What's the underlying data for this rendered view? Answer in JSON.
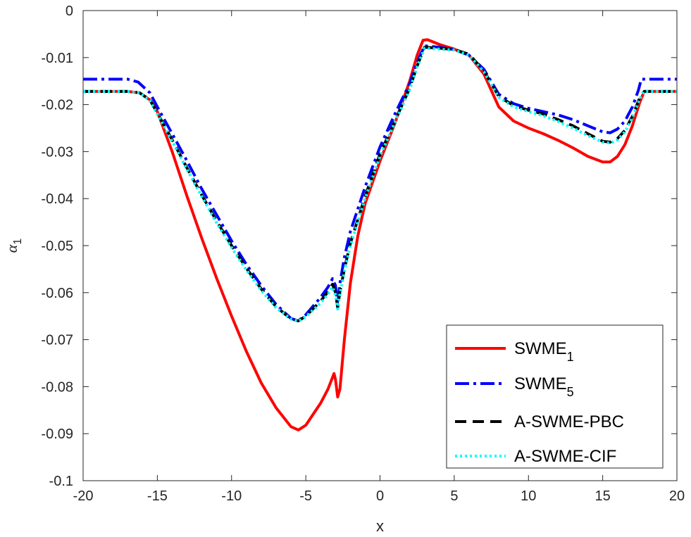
{
  "chart_data": {
    "type": "line",
    "title": "",
    "xlabel": "x",
    "ylabel_main": "α",
    "ylabel_sub": "1",
    "xlim": [
      -20,
      20
    ],
    "ylim": [
      -0.1,
      0
    ],
    "xticks": [
      -20,
      -15,
      -10,
      -5,
      0,
      5,
      10,
      15,
      20
    ],
    "xtick_labels": [
      "-20",
      "-15",
      "-10",
      "-5",
      "0",
      "5",
      "10",
      "15",
      "20"
    ],
    "yticks": [
      0,
      -0.01,
      -0.02,
      -0.03,
      -0.04,
      -0.05,
      -0.06,
      -0.07,
      -0.08,
      -0.09,
      -0.1
    ],
    "ytick_labels": [
      "0",
      "-0.01",
      "-0.02",
      "-0.03",
      "-0.04",
      "-0.05",
      "-0.06",
      "-0.07",
      "-0.08",
      "-0.09",
      "-0.1"
    ],
    "grid": false,
    "legend_position": "bottom-right",
    "series": [
      {
        "name": "SWME",
        "name_sub": "1",
        "color": "#ff0000",
        "style": "solid",
        "points": [
          [
            -20,
            -0.0172
          ],
          [
            -17,
            -0.0172
          ],
          [
            -16.2,
            -0.0175
          ],
          [
            -15.5,
            -0.019
          ],
          [
            -15,
            -0.0215
          ],
          [
            -14,
            -0.03
          ],
          [
            -13,
            -0.0395
          ],
          [
            -12,
            -0.0485
          ],
          [
            -11,
            -0.057
          ],
          [
            -10,
            -0.065
          ],
          [
            -9,
            -0.0725
          ],
          [
            -8,
            -0.0792
          ],
          [
            -7,
            -0.0845
          ],
          [
            -6,
            -0.0885
          ],
          [
            -5.5,
            -0.0892
          ],
          [
            -5,
            -0.0882
          ],
          [
            -4,
            -0.0835
          ],
          [
            -3.5,
            -0.0805
          ],
          [
            -3.1,
            -0.0772
          ],
          [
            -3.0,
            -0.0785
          ],
          [
            -2.85,
            -0.0822
          ],
          [
            -2.7,
            -0.0805
          ],
          [
            -2.4,
            -0.07
          ],
          [
            -2,
            -0.058
          ],
          [
            -1.5,
            -0.048
          ],
          [
            -1,
            -0.041
          ],
          [
            0,
            -0.032
          ],
          [
            1,
            -0.024
          ],
          [
            2,
            -0.015
          ],
          [
            2.5,
            -0.0095
          ],
          [
            2.9,
            -0.0063
          ],
          [
            3.2,
            -0.0062
          ],
          [
            4,
            -0.0072
          ],
          [
            5,
            -0.0082
          ],
          [
            6,
            -0.0095
          ],
          [
            7,
            -0.0135
          ],
          [
            8,
            -0.0205
          ],
          [
            9,
            -0.0235
          ],
          [
            10,
            -0.025
          ],
          [
            11,
            -0.0262
          ],
          [
            12,
            -0.0276
          ],
          [
            13,
            -0.0292
          ],
          [
            14,
            -0.031
          ],
          [
            15,
            -0.0322
          ],
          [
            15.5,
            -0.0322
          ],
          [
            16,
            -0.031
          ],
          [
            16.5,
            -0.0285
          ],
          [
            17,
            -0.0245
          ],
          [
            17.5,
            -0.0195
          ],
          [
            17.8,
            -0.0172
          ],
          [
            20,
            -0.0172
          ]
        ]
      },
      {
        "name": "SWME",
        "name_sub": "5",
        "color": "#0000ff",
        "style": "dashdot",
        "points": [
          [
            -20,
            -0.0146
          ],
          [
            -17,
            -0.0146
          ],
          [
            -16.3,
            -0.0152
          ],
          [
            -15.5,
            -0.0175
          ],
          [
            -15,
            -0.0205
          ],
          [
            -14,
            -0.0262
          ],
          [
            -13,
            -0.032
          ],
          [
            -12,
            -0.038
          ],
          [
            -11,
            -0.0435
          ],
          [
            -10,
            -0.049
          ],
          [
            -9,
            -0.054
          ],
          [
            -8,
            -0.0585
          ],
          [
            -7,
            -0.0625
          ],
          [
            -6,
            -0.0655
          ],
          [
            -5.5,
            -0.066
          ],
          [
            -5,
            -0.0647
          ],
          [
            -4,
            -0.061
          ],
          [
            -3.5,
            -0.0588
          ],
          [
            -3.2,
            -0.057
          ],
          [
            -3.0,
            -0.0585
          ],
          [
            -2.85,
            -0.0625
          ],
          [
            -2.7,
            -0.058
          ],
          [
            -2.4,
            -0.0525
          ],
          [
            -2,
            -0.047
          ],
          [
            -1,
            -0.0375
          ],
          [
            0,
            -0.029
          ],
          [
            1,
            -0.022
          ],
          [
            2,
            -0.0155
          ],
          [
            2.5,
            -0.011
          ],
          [
            3,
            -0.0075
          ],
          [
            4,
            -0.0078
          ],
          [
            5,
            -0.0083
          ],
          [
            6,
            -0.0095
          ],
          [
            7,
            -0.0125
          ],
          [
            8,
            -0.0178
          ],
          [
            9,
            -0.0198
          ],
          [
            10,
            -0.0208
          ],
          [
            11,
            -0.0215
          ],
          [
            12,
            -0.0222
          ],
          [
            13,
            -0.0232
          ],
          [
            14,
            -0.0245
          ],
          [
            15,
            -0.0258
          ],
          [
            15.5,
            -0.026
          ],
          [
            16,
            -0.0252
          ],
          [
            16.5,
            -0.0235
          ],
          [
            17,
            -0.0205
          ],
          [
            17.4,
            -0.017
          ],
          [
            17.6,
            -0.0146
          ],
          [
            20,
            -0.0146
          ]
        ]
      },
      {
        "name": "A-SWME-PBC",
        "name_sub": "",
        "color": "#000000",
        "style": "dashed",
        "points": [
          [
            -20,
            -0.0172
          ],
          [
            -17,
            -0.0172
          ],
          [
            -16.2,
            -0.0175
          ],
          [
            -15.5,
            -0.019
          ],
          [
            -15,
            -0.0218
          ],
          [
            -14,
            -0.0275
          ],
          [
            -13,
            -0.0335
          ],
          [
            -12,
            -0.0393
          ],
          [
            -11,
            -0.0448
          ],
          [
            -10,
            -0.05
          ],
          [
            -9,
            -0.0548
          ],
          [
            -8,
            -0.0592
          ],
          [
            -7,
            -0.063
          ],
          [
            -6,
            -0.0656
          ],
          [
            -5.5,
            -0.066
          ],
          [
            -5,
            -0.065
          ],
          [
            -4,
            -0.0618
          ],
          [
            -3.5,
            -0.0598
          ],
          [
            -3.2,
            -0.0582
          ],
          [
            -3.0,
            -0.06
          ],
          [
            -2.85,
            -0.0632
          ],
          [
            -2.7,
            -0.0598
          ],
          [
            -2.4,
            -0.055
          ],
          [
            -2,
            -0.0495
          ],
          [
            -1,
            -0.0395
          ],
          [
            0,
            -0.0305
          ],
          [
            1,
            -0.0235
          ],
          [
            2,
            -0.0165
          ],
          [
            2.5,
            -0.0118
          ],
          [
            3,
            -0.0078
          ],
          [
            4,
            -0.008
          ],
          [
            5,
            -0.0083
          ],
          [
            6,
            -0.0093
          ],
          [
            7,
            -0.0128
          ],
          [
            8,
            -0.0183
          ],
          [
            9,
            -0.0202
          ],
          [
            10,
            -0.0212
          ],
          [
            11,
            -0.022
          ],
          [
            12,
            -0.0232
          ],
          [
            13,
            -0.0245
          ],
          [
            14,
            -0.0262
          ],
          [
            15,
            -0.0278
          ],
          [
            15.5,
            -0.028
          ],
          [
            16,
            -0.0272
          ],
          [
            16.5,
            -0.0255
          ],
          [
            17,
            -0.0225
          ],
          [
            17.5,
            -0.0185
          ],
          [
            17.8,
            -0.0172
          ],
          [
            20,
            -0.0172
          ]
        ]
      },
      {
        "name": "A-SWME-CIF",
        "name_sub": "",
        "color": "#00ffff",
        "style": "dotted",
        "points": [
          [
            -20,
            -0.0172
          ],
          [
            -17,
            -0.0172
          ],
          [
            -16.2,
            -0.0175
          ],
          [
            -15.5,
            -0.0192
          ],
          [
            -15,
            -0.022
          ],
          [
            -14,
            -0.0278
          ],
          [
            -13,
            -0.0338
          ],
          [
            -12,
            -0.0396
          ],
          [
            -11,
            -0.0452
          ],
          [
            -10,
            -0.0504
          ],
          [
            -9,
            -0.0552
          ],
          [
            -8,
            -0.0595
          ],
          [
            -7,
            -0.0632
          ],
          [
            -6,
            -0.0656
          ],
          [
            -5.5,
            -0.0661
          ],
          [
            -5,
            -0.0651
          ],
          [
            -4,
            -0.0622
          ],
          [
            -3.5,
            -0.0603
          ],
          [
            -3.2,
            -0.0588
          ],
          [
            -3.0,
            -0.0605
          ],
          [
            -2.85,
            -0.0635
          ],
          [
            -2.7,
            -0.0602
          ],
          [
            -2.4,
            -0.0555
          ],
          [
            -2,
            -0.05
          ],
          [
            -1,
            -0.04
          ],
          [
            0,
            -0.031
          ],
          [
            1,
            -0.0238
          ],
          [
            2,
            -0.0168
          ],
          [
            2.5,
            -0.012
          ],
          [
            3,
            -0.008
          ],
          [
            4,
            -0.0082
          ],
          [
            5,
            -0.0084
          ],
          [
            6,
            -0.0095
          ],
          [
            7,
            -0.013
          ],
          [
            8,
            -0.0185
          ],
          [
            9,
            -0.0205
          ],
          [
            10,
            -0.0215
          ],
          [
            11,
            -0.0224
          ],
          [
            12,
            -0.0236
          ],
          [
            13,
            -0.025
          ],
          [
            14,
            -0.0266
          ],
          [
            15,
            -0.028
          ],
          [
            15.5,
            -0.0282
          ],
          [
            16,
            -0.0275
          ],
          [
            16.5,
            -0.0258
          ],
          [
            17,
            -0.0228
          ],
          [
            17.5,
            -0.0188
          ],
          [
            17.8,
            -0.0172
          ],
          [
            20,
            -0.0172
          ]
        ]
      }
    ]
  }
}
